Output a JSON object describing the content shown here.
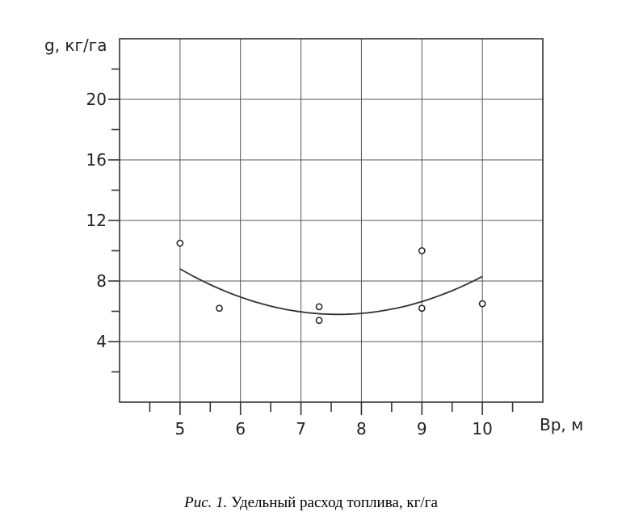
{
  "caption": {
    "label": "Рис. 1.",
    "text": "Удельный расход топлива, кг/га"
  },
  "chart_data": {
    "type": "scatter",
    "xlabel": "Bр, м",
    "ylabel": "g, кг/га",
    "xlim": [
      4,
      11
    ],
    "ylim": [
      0,
      24
    ],
    "x_ticks": [
      5,
      6,
      7,
      8,
      9,
      10
    ],
    "y_ticks": [
      4,
      8,
      12,
      16,
      20
    ],
    "grid": true,
    "points": [
      {
        "x": 5.0,
        "y": 10.5
      },
      {
        "x": 5.65,
        "y": 6.2
      },
      {
        "x": 7.3,
        "y": 6.3
      },
      {
        "x": 7.3,
        "y": 5.4
      },
      {
        "x": 9.0,
        "y": 10.0
      },
      {
        "x": 9.0,
        "y": 6.2
      },
      {
        "x": 10.0,
        "y": 6.5
      }
    ],
    "trend_curve": {
      "type": "quadratic",
      "x_range": [
        5,
        10
      ],
      "points": [
        {
          "x": 5.0,
          "y": 8.8
        },
        {
          "x": 7.7,
          "y": 5.8
        },
        {
          "x": 10.0,
          "y": 8.3
        }
      ]
    }
  }
}
